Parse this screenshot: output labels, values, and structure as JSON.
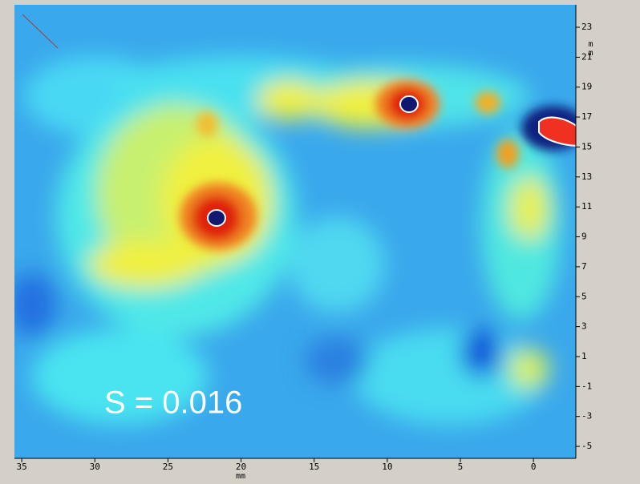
{
  "chart_data": {
    "type": "image",
    "annotation": "S = 0.016",
    "x_label": "mm",
    "y_label": "mm",
    "xlim": [
      35.5,
      -2.9
    ],
    "xticks": [
      35,
      30,
      25,
      20,
      15,
      10,
      5,
      0
    ],
    "ylim": [
      -5.8,
      24.5
    ],
    "yticks": [
      -5,
      -3,
      -1,
      1,
      3,
      5,
      7,
      9,
      11,
      13,
      15,
      17,
      19,
      21,
      23
    ]
  }
}
